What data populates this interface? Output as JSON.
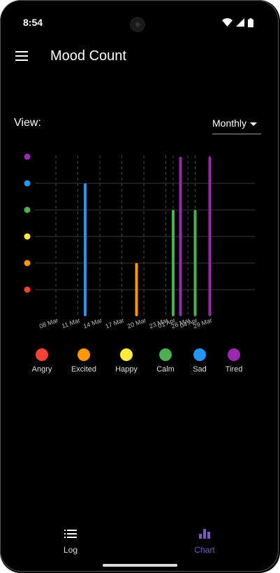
{
  "status": {
    "time": "8:54"
  },
  "appbar": {
    "title": "Mood Count",
    "menu_icon": "hamburger-menu-icon"
  },
  "view": {
    "label": "View:",
    "selected": "Monthly"
  },
  "colors": {
    "angry": "#f44336",
    "excited": "#ff9800",
    "happy": "#ffeb3b",
    "calm": "#4caf50",
    "sad": "#2196f3",
    "tired": "#9c27b0",
    "accent": "#7e57c2",
    "background": "#000000"
  },
  "chart_data": {
    "type": "bar",
    "x_tick_labels": [
      "08 Mar",
      "11 Mar",
      "14 Mar",
      "17 Mar",
      "20 Mar",
      "23 Mar",
      "26 Mar",
      "29 Mar",
      "01 Apr",
      "04 Apr"
    ],
    "y_levels": [
      "Angry",
      "Excited",
      "Happy",
      "Calm",
      "Sad",
      "Tired"
    ],
    "bars": [
      {
        "date": "12 Mar",
        "mood": "Sad"
      },
      {
        "date": "19 Mar",
        "mood": "Excited"
      },
      {
        "date": "01 Apr",
        "mood": "Calm"
      },
      {
        "date": "02 Apr",
        "mood": "Tired"
      },
      {
        "date": "04 Apr",
        "mood": "Calm"
      },
      {
        "date": "06 Apr",
        "mood": "Tired"
      }
    ],
    "grid": true
  },
  "legend": [
    {
      "label": "Angry",
      "color": "#f44336"
    },
    {
      "label": "Excited",
      "color": "#ff9800"
    },
    {
      "label": "Happy",
      "color": "#ffeb3b"
    },
    {
      "label": "Calm",
      "color": "#4caf50"
    },
    {
      "label": "Sad",
      "color": "#2196f3"
    },
    {
      "label": "Tired",
      "color": "#9c27b0"
    }
  ],
  "nav": [
    {
      "label": "Log",
      "icon": "list-icon",
      "active": false
    },
    {
      "label": "Chart",
      "icon": "bar-chart-icon",
      "active": true
    }
  ]
}
